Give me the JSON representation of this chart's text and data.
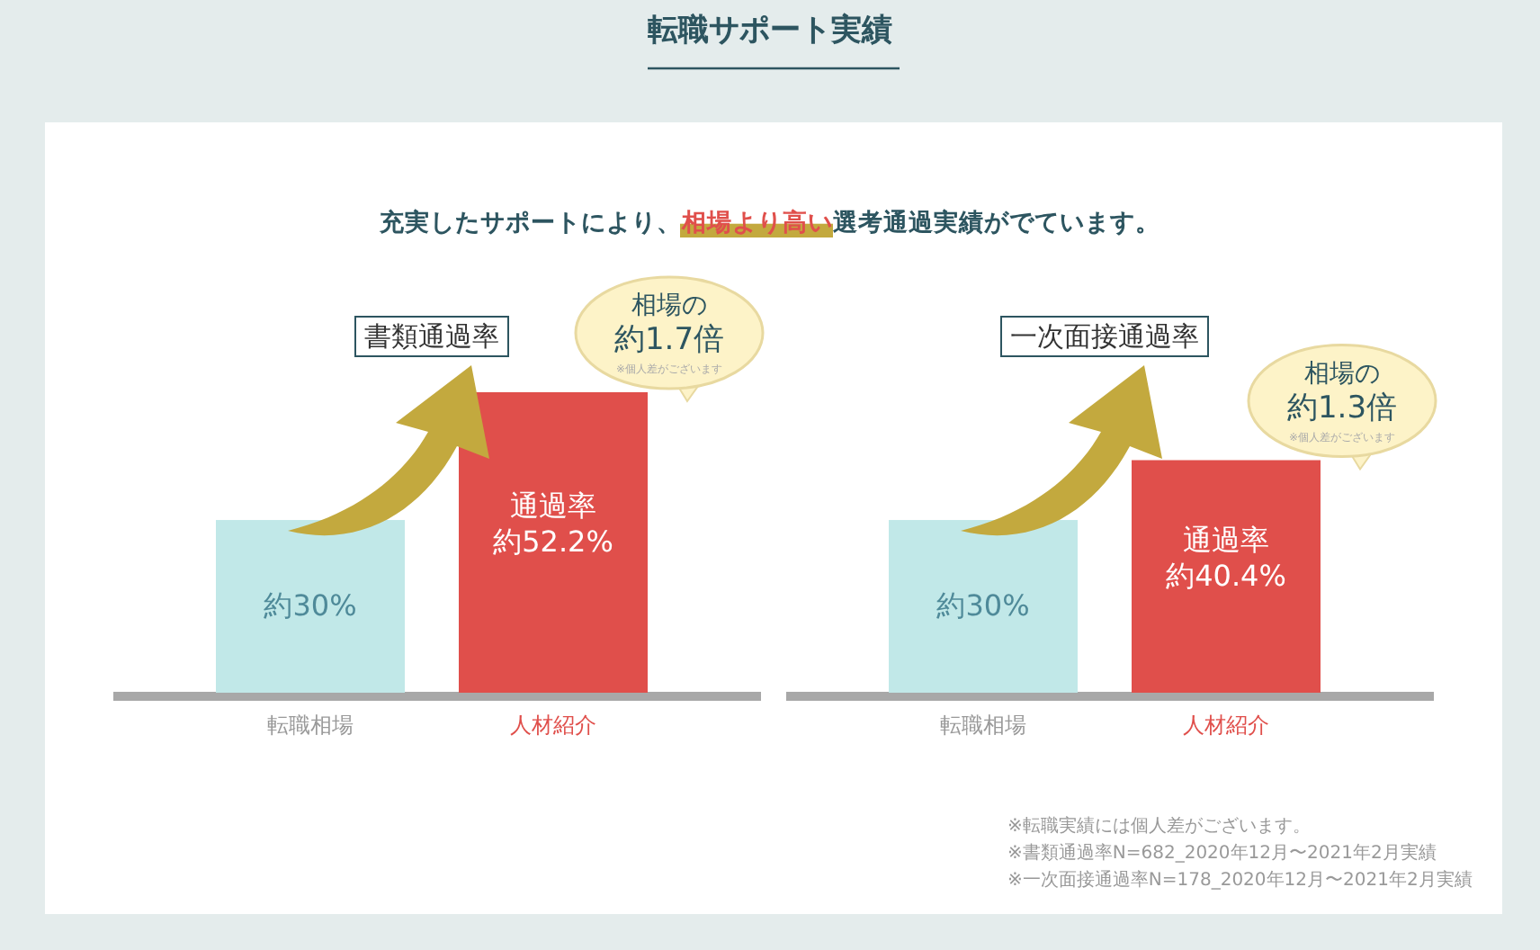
{
  "chart_data": [
    {
      "type": "bar",
      "title": "書類通過率",
      "categories": [
        "転職相場",
        "人材紹介"
      ],
      "values": [
        30,
        52.2
      ],
      "colors": [
        "#c1e8e8",
        "#e04f4b"
      ],
      "value_labels": [
        "約30%",
        "約52.2%"
      ],
      "annotations": [
        "転職サポート実績",
        "充実したサポートにより、",
        "相場より高い",
        "選考通過実績がでています。",
        "通過率",
        "相場の",
        "約1.7倍",
        "※個人差がございます"
      ]
    },
    {
      "type": "bar",
      "title": "一次面接通過率",
      "categories": [
        "転職相場",
        "人材紹介"
      ],
      "values": [
        30,
        40.4
      ],
      "colors": [
        "#c1e8e8",
        "#e04f4b"
      ],
      "value_labels": [
        "約30%",
        "約40.4%"
      ],
      "annotations": [
        "通過率",
        "相場の",
        "約1.3倍",
        "※個人差がございます",
        "※転職実績には個人差がございます。",
        "※書類通過率N=682_2020年12月〜2021年2月実績",
        "※一次面接通過率N=178_2020年12月〜2021年2月実績"
      ]
    }
  ]
}
